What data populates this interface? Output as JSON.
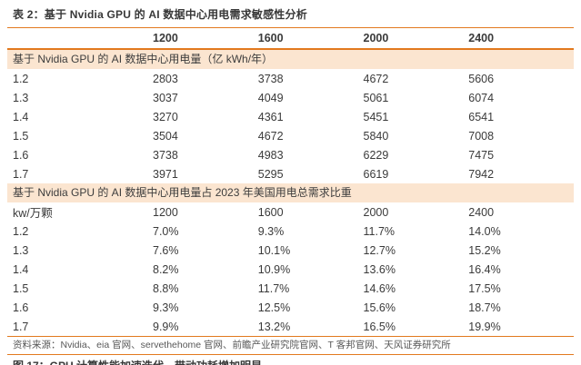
{
  "page": {
    "title": "表 2：基于 Nvidia GPU 的 AI 数据中心用电需求敏感性分析"
  },
  "table": {
    "headers": [
      "1200",
      "1600",
      "2000",
      "2400"
    ],
    "sections": [
      {
        "band": "基于 Nvidia GPU 的 AI 数据中心用电量（亿 kWh/年）",
        "rows": [
          {
            "label": "1.2",
            "values": [
              "2803",
              "3738",
              "4672",
              "5606"
            ]
          },
          {
            "label": "1.3",
            "values": [
              "3037",
              "4049",
              "5061",
              "6074"
            ]
          },
          {
            "label": "1.4",
            "values": [
              "3270",
              "4361",
              "5451",
              "6541"
            ]
          },
          {
            "label": "1.5",
            "values": [
              "3504",
              "4672",
              "5840",
              "7008"
            ]
          },
          {
            "label": "1.6",
            "values": [
              "3738",
              "4983",
              "6229",
              "7475"
            ]
          },
          {
            "label": "1.7",
            "values": [
              "3971",
              "5295",
              "6619",
              "7942"
            ]
          }
        ]
      },
      {
        "band": "基于 Nvidia GPU 的 AI 数据中心用电量占 2023 年美国用电总需求比重",
        "subheader": {
          "label": "kw/万颗",
          "values": [
            "1200",
            "1600",
            "2000",
            "2400"
          ]
        },
        "rows": [
          {
            "label": "1.2",
            "values": [
              "7.0%",
              "9.3%",
              "11.7%",
              "14.0%"
            ]
          },
          {
            "label": "1.3",
            "values": [
              "7.6%",
              "10.1%",
              "12.7%",
              "15.2%"
            ]
          },
          {
            "label": "1.4",
            "values": [
              "8.2%",
              "10.9%",
              "13.6%",
              "16.4%"
            ]
          },
          {
            "label": "1.5",
            "values": [
              "8.8%",
              "11.7%",
              "14.6%",
              "17.5%"
            ]
          },
          {
            "label": "1.6",
            "values": [
              "9.3%",
              "12.5%",
              "15.6%",
              "18.7%"
            ]
          },
          {
            "label": "1.7",
            "values": [
              "9.9%",
              "13.2%",
              "16.5%",
              "19.9%"
            ]
          }
        ]
      }
    ]
  },
  "footer": {
    "source": "资料来源：Nvidia、eia 官网、servethehome 官网、前瞻产业研究院官网、T 客邦官网、天风证券研究所",
    "next_figure_caption": "图 17：GPU 计算性能加速迭代，带动功耗增加明显"
  },
  "colors": {
    "accent_orange": "#E2791E",
    "band_background": "#FBE5D0",
    "text_dark": "#3A3A3A",
    "text_gray": "#585858"
  }
}
